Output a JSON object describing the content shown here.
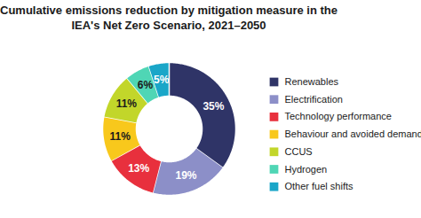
{
  "chart_data": {
    "type": "donut",
    "title": "Cumulative emissions reduction by mitigation measure in the IEA's Net Zero Scenario, 2021–2050",
    "categories": [
      "Renewables",
      "Electrification",
      "Technology performance",
      "Behaviour and avoided demand",
      "CCUS",
      "Hydrogen",
      "Other fuel shifts"
    ],
    "values": [
      35,
      19,
      13,
      11,
      11,
      6,
      5
    ],
    "value_labels": [
      "35%",
      "19%",
      "13%",
      "11%",
      "11%",
      "6%",
      "5%"
    ],
    "colors": [
      "#2f3467",
      "#8c8fc8",
      "#e8303d",
      "#f8c81c",
      "#c2d62a",
      "#4fd6b5",
      "#1aa6c8"
    ],
    "data_labels": true,
    "legend": "right"
  }
}
